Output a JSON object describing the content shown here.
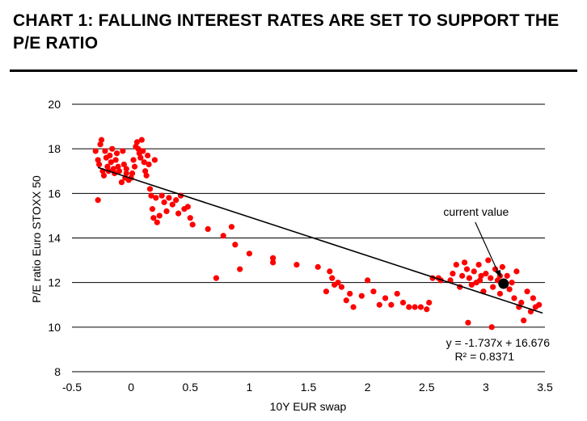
{
  "title": "CHART 1: FALLING INTEREST RATES ARE SET TO SUPPORT THE P/E RATIO",
  "chart_data": {
    "type": "scatter",
    "title": "CHART 1: FALLING INTEREST RATES ARE SET TO SUPPORT THE P/E RATIO",
    "xlabel": "10Y EUR swap",
    "ylabel": "P/E ratio Euro STOXX 50",
    "xlim": [
      -0.5,
      3.5
    ],
    "ylim": [
      8,
      20
    ],
    "xticks": [
      "-0.5",
      "0",
      "0.5",
      "1",
      "1.5",
      "2",
      "2.5",
      "3",
      "3.5"
    ],
    "yticks": [
      "8",
      "10",
      "12",
      "14",
      "16",
      "18",
      "20"
    ],
    "grid": "horizontal",
    "point_color": "#ff0000",
    "trend_color": "#000000",
    "trendline": {
      "slope": -1.737,
      "intercept": 16.676,
      "x_range": [
        -0.28,
        3.48
      ]
    },
    "equation": "y = -1.737x + 16.676",
    "r_squared": "R² = 0.8371",
    "annotation": {
      "text": "current value",
      "x": 3.15,
      "y": 11.95
    },
    "points": [
      [
        -0.3,
        17.9
      ],
      [
        -0.28,
        17.5
      ],
      [
        -0.27,
        17.3
      ],
      [
        -0.26,
        18.2
      ],
      [
        -0.25,
        18.4
      ],
      [
        -0.24,
        17.0
      ],
      [
        -0.23,
        16.8
      ],
      [
        -0.22,
        17.9
      ],
      [
        -0.21,
        17.6
      ],
      [
        -0.2,
        17.2
      ],
      [
        -0.19,
        17.0
      ],
      [
        -0.18,
        17.7
      ],
      [
        -0.17,
        17.4
      ],
      [
        -0.16,
        18.0
      ],
      [
        -0.15,
        17.1
      ],
      [
        -0.14,
        16.9
      ],
      [
        -0.13,
        17.5
      ],
      [
        -0.12,
        17.8
      ],
      [
        -0.11,
        17.2
      ],
      [
        -0.1,
        17.0
      ],
      [
        -0.08,
        16.5
      ],
      [
        -0.07,
        17.9
      ],
      [
        -0.06,
        17.3
      ],
      [
        -0.05,
        16.7
      ],
      [
        -0.04,
        17.1
      ],
      [
        -0.02,
        16.6
      ],
      [
        0.0,
        16.7
      ],
      [
        0.01,
        16.9
      ],
      [
        0.02,
        17.5
      ],
      [
        0.03,
        17.2
      ],
      [
        0.04,
        18.1
      ],
      [
        0.05,
        18.3
      ],
      [
        0.06,
        18.0
      ],
      [
        0.07,
        17.8
      ],
      [
        0.08,
        17.6
      ],
      [
        0.09,
        18.4
      ],
      [
        0.1,
        17.9
      ],
      [
        0.11,
        17.4
      ],
      [
        0.12,
        17.0
      ],
      [
        0.13,
        16.8
      ],
      [
        0.14,
        17.7
      ],
      [
        0.15,
        17.3
      ],
      [
        0.16,
        16.2
      ],
      [
        0.17,
        15.9
      ],
      [
        0.18,
        15.3
      ],
      [
        0.19,
        14.9
      ],
      [
        0.2,
        17.5
      ],
      [
        0.21,
        15.8
      ],
      [
        0.22,
        14.7
      ],
      [
        0.24,
        15.0
      ],
      [
        0.26,
        15.9
      ],
      [
        0.28,
        15.6
      ],
      [
        0.3,
        15.2
      ],
      [
        0.32,
        15.8
      ],
      [
        0.35,
        15.5
      ],
      [
        0.38,
        15.7
      ],
      [
        0.4,
        15.1
      ],
      [
        0.42,
        15.9
      ],
      [
        0.45,
        15.3
      ],
      [
        0.48,
        15.4
      ],
      [
        0.5,
        14.9
      ],
      [
        0.52,
        14.6
      ],
      [
        -0.28,
        15.7
      ],
      [
        -0.04,
        16.9
      ],
      [
        0.65,
        14.4
      ],
      [
        0.72,
        12.2
      ],
      [
        0.78,
        14.1
      ],
      [
        0.85,
        14.5
      ],
      [
        0.88,
        13.7
      ],
      [
        0.92,
        12.6
      ],
      [
        1.0,
        13.3
      ],
      [
        1.2,
        13.1
      ],
      [
        1.2,
        12.9
      ],
      [
        1.4,
        12.8
      ],
      [
        1.58,
        12.7
      ],
      [
        1.65,
        11.6
      ],
      [
        1.68,
        12.5
      ],
      [
        1.7,
        12.2
      ],
      [
        1.72,
        11.9
      ],
      [
        1.75,
        12.0
      ],
      [
        1.78,
        11.8
      ],
      [
        1.82,
        11.2
      ],
      [
        1.85,
        11.5
      ],
      [
        1.88,
        10.9
      ],
      [
        1.95,
        11.4
      ],
      [
        2.0,
        12.1
      ],
      [
        2.05,
        11.6
      ],
      [
        2.1,
        11.0
      ],
      [
        2.15,
        11.3
      ],
      [
        2.2,
        11.0
      ],
      [
        2.25,
        11.5
      ],
      [
        2.3,
        11.1
      ],
      [
        2.35,
        10.9
      ],
      [
        2.4,
        10.9
      ],
      [
        2.45,
        10.9
      ],
      [
        2.5,
        10.8
      ],
      [
        2.52,
        11.1
      ],
      [
        2.55,
        12.2
      ],
      [
        2.6,
        12.2
      ],
      [
        2.62,
        12.1
      ],
      [
        2.7,
        12.1
      ],
      [
        2.72,
        12.4
      ],
      [
        2.75,
        12.8
      ],
      [
        2.78,
        11.8
      ],
      [
        2.8,
        12.3
      ],
      [
        2.82,
        12.9
      ],
      [
        2.84,
        12.6
      ],
      [
        2.86,
        12.2
      ],
      [
        2.88,
        11.9
      ],
      [
        2.9,
        12.5
      ],
      [
        2.92,
        12.0
      ],
      [
        2.94,
        12.8
      ],
      [
        2.96,
        12.3
      ],
      [
        2.98,
        11.6
      ],
      [
        3.0,
        12.4
      ],
      [
        3.02,
        13.0
      ],
      [
        3.04,
        12.2
      ],
      [
        3.06,
        11.8
      ],
      [
        3.08,
        12.6
      ],
      [
        3.1,
        12.1
      ],
      [
        3.12,
        11.5
      ],
      [
        3.14,
        12.7
      ],
      [
        3.16,
        11.9
      ],
      [
        3.18,
        12.3
      ],
      [
        3.2,
        11.7
      ],
      [
        3.22,
        12.0
      ],
      [
        3.24,
        11.3
      ],
      [
        3.26,
        12.5
      ],
      [
        3.28,
        10.9
      ],
      [
        3.3,
        11.1
      ],
      [
        3.32,
        10.3
      ],
      [
        3.35,
        11.6
      ],
      [
        3.38,
        10.7
      ],
      [
        3.4,
        11.3
      ],
      [
        3.42,
        10.9
      ],
      [
        3.45,
        11.0
      ],
      [
        2.85,
        10.2
      ],
      [
        3.05,
        10.0
      ],
      [
        2.95,
        12.1
      ],
      [
        3.12,
        12.3
      ]
    ]
  }
}
